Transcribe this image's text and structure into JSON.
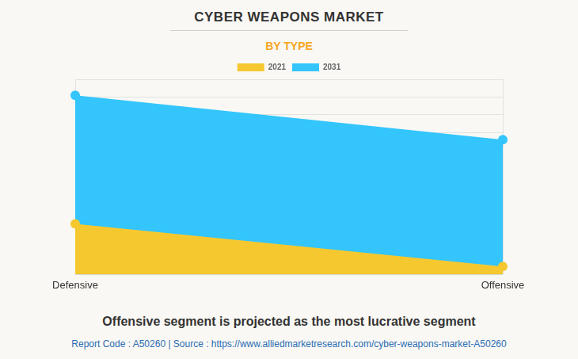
{
  "chart_data": {
    "type": "area",
    "title": "CYBER WEAPONS MARKET",
    "subtitle": "BY TYPE",
    "caption": "Offensive segment is projected as the most lucrative segment",
    "footer": "Report Code : A50260  |  Source : https://www.alliedmarketresearch.com/cyber-weapons-market-A50260",
    "categories": [
      "Defensive",
      "Offensive"
    ],
    "series": [
      {
        "name": "2021",
        "color": "#f6c830",
        "values": [
          2.85,
          0.45
        ]
      },
      {
        "name": "2031",
        "color": "#33c5fc",
        "values": [
          10.1,
          7.6
        ]
      }
    ],
    "ylim": [
      0,
      11
    ],
    "yticks": [
      0,
      1,
      2,
      3,
      4,
      5,
      6,
      7,
      8,
      9,
      10,
      11
    ],
    "grid": true,
    "legend": "top",
    "tick_labels": "x",
    "marker": "circle"
  }
}
